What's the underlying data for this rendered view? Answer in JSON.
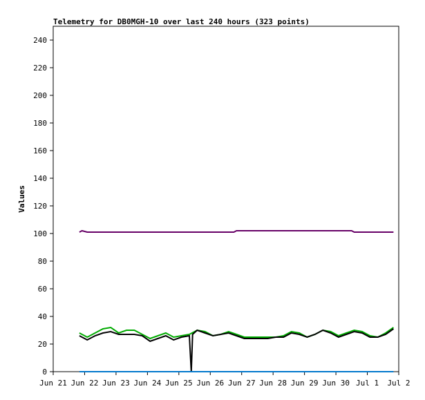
{
  "chart_data": {
    "type": "line",
    "title": "Telemetry for DB0MGH-10 over last 240 hours (323 points)",
    "xlabel": "",
    "ylabel": "Values",
    "ylim": [
      0,
      250
    ],
    "yticks": [
      0,
      20,
      40,
      60,
      80,
      100,
      120,
      140,
      160,
      180,
      200,
      220,
      240
    ],
    "xlim": [
      "2024-06-21",
      "2024-07-02"
    ],
    "xticks": [
      {
        "date": "2024-06-21",
        "label": "Jun 21"
      },
      {
        "date": "2024-06-22",
        "label": "Jun 22"
      },
      {
        "date": "2024-06-23",
        "label": "Jun 23"
      },
      {
        "date": "2024-06-24",
        "label": "Jun 24"
      },
      {
        "date": "2024-06-25",
        "label": "Jun 25"
      },
      {
        "date": "2024-06-26",
        "label": "Jun 26"
      },
      {
        "date": "2024-06-27",
        "label": "Jun 27"
      },
      {
        "date": "2024-06-28",
        "label": "Jun 28"
      },
      {
        "date": "2024-06-29",
        "label": "Jun 29"
      },
      {
        "date": "2024-06-30",
        "label": "Jun 30"
      },
      {
        "date": "2024-07-01",
        "label": "Jul 1"
      },
      {
        "date": "2024-07-02",
        "label": "Jul 2"
      }
    ],
    "grid": false,
    "series": [
      {
        "color": "#660066",
        "x": [
          "2024-06-21T20:00",
          "2024-06-21T22:00",
          "2024-06-22T02:00",
          "2024-06-24T00:00",
          "2024-06-26T00:00",
          "2024-06-26T18:00",
          "2024-06-26T20:00",
          "2024-06-28T12:00",
          "2024-06-30T12:00",
          "2024-06-30T14:00",
          "2024-07-01T12:00",
          "2024-07-01T20:00"
        ],
        "y": [
          101,
          102,
          101,
          101,
          101,
          101,
          102,
          102,
          102,
          101,
          101,
          101
        ]
      },
      {
        "color": "#00aa00",
        "x": [
          "2024-06-21T20:00",
          "2024-06-22T02:00",
          "2024-06-22T08:00",
          "2024-06-22T14:00",
          "2024-06-22T20:00",
          "2024-06-23T02:00",
          "2024-06-23T08:00",
          "2024-06-23T14:00",
          "2024-06-23T20:00",
          "2024-06-24T02:00",
          "2024-06-24T08:00",
          "2024-06-24T14:00",
          "2024-06-24T20:00",
          "2024-06-25T02:00",
          "2024-06-25T08:00",
          "2024-06-25T14:00",
          "2024-06-25T20:00",
          "2024-06-26T02:00",
          "2024-06-26T08:00",
          "2024-06-26T14:00",
          "2024-06-26T20:00",
          "2024-06-27T02:00",
          "2024-06-27T08:00",
          "2024-06-27T14:00",
          "2024-06-27T20:00",
          "2024-06-28T02:00",
          "2024-06-28T08:00",
          "2024-06-28T14:00",
          "2024-06-28T20:00",
          "2024-06-29T02:00",
          "2024-06-29T08:00",
          "2024-06-29T14:00",
          "2024-06-29T20:00",
          "2024-06-30T02:00",
          "2024-06-30T08:00",
          "2024-06-30T14:00",
          "2024-06-30T20:00",
          "2024-07-01T02:00",
          "2024-07-01T08:00",
          "2024-07-01T14:00",
          "2024-07-01T20:00"
        ],
        "y": [
          28,
          25,
          28,
          31,
          32,
          28,
          30,
          30,
          27,
          24,
          26,
          28,
          25,
          26,
          27,
          30,
          29,
          26,
          27,
          29,
          27,
          25,
          25,
          25,
          25,
          25,
          26,
          29,
          28,
          25,
          27,
          30,
          29,
          26,
          28,
          30,
          29,
          26,
          25,
          28,
          32
        ]
      },
      {
        "color": "#000000",
        "x": [
          "2024-06-21T20:00",
          "2024-06-22T02:00",
          "2024-06-22T08:00",
          "2024-06-22T14:00",
          "2024-06-22T20:00",
          "2024-06-23T02:00",
          "2024-06-23T08:00",
          "2024-06-23T14:00",
          "2024-06-23T20:00",
          "2024-06-24T02:00",
          "2024-06-24T08:00",
          "2024-06-24T14:00",
          "2024-06-24T20:00",
          "2024-06-25T02:00",
          "2024-06-25T08:00",
          "2024-06-25T09:30",
          "2024-06-25T10:30",
          "2024-06-25T14:00",
          "2024-06-25T20:00",
          "2024-06-26T02:00",
          "2024-06-26T08:00",
          "2024-06-26T14:00",
          "2024-06-26T20:00",
          "2024-06-27T02:00",
          "2024-06-27T08:00",
          "2024-06-27T14:00",
          "2024-06-27T20:00",
          "2024-06-28T02:00",
          "2024-06-28T08:00",
          "2024-06-28T14:00",
          "2024-06-28T20:00",
          "2024-06-29T02:00",
          "2024-06-29T08:00",
          "2024-06-29T14:00",
          "2024-06-29T20:00",
          "2024-06-30T02:00",
          "2024-06-30T08:00",
          "2024-06-30T14:00",
          "2024-06-30T20:00",
          "2024-07-01T02:00",
          "2024-07-01T08:00",
          "2024-07-01T14:00",
          "2024-07-01T20:00"
        ],
        "y": [
          26,
          23,
          26,
          28,
          29,
          27,
          27,
          27,
          26,
          22,
          24,
          26,
          23,
          25,
          26,
          0,
          27,
          30,
          28,
          26,
          27,
          28,
          26,
          24,
          24,
          24,
          24,
          25,
          25,
          28,
          27,
          25,
          27,
          30,
          28,
          25,
          27,
          29,
          28,
          25,
          25,
          27,
          31
        ]
      },
      {
        "color": "#0077cc",
        "x": [
          "2024-06-21T20:00",
          "2024-07-01T20:00"
        ],
        "y": [
          0,
          0
        ]
      }
    ]
  }
}
